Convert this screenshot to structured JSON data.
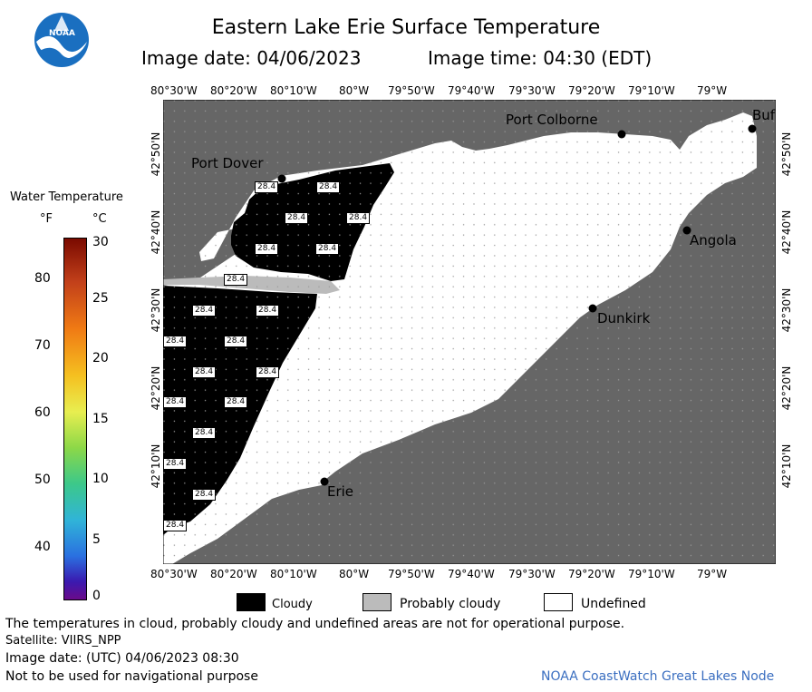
{
  "header": {
    "title": "Eastern Lake Erie Surface Temperature",
    "image_date": "Image date: 04/06/2023",
    "image_time": "Image time: 04:30 (EDT)",
    "logo_text": "NOAA"
  },
  "map": {
    "lon_labels": [
      "80°30'W",
      "80°20'W",
      "80°10'W",
      "80°W",
      "79°50'W",
      "79°40'W",
      "79°30'W",
      "79°20'W",
      "79°10'W",
      "79°W"
    ],
    "lat_labels": [
      "42°50'N",
      "42°40'N",
      "42°30'N",
      "42°20'N",
      "42°10'N"
    ],
    "places": {
      "port_colborne": "Port Colborne",
      "port_dover": "Port Dover",
      "angola": "Angola",
      "dunkirk": "Dunkirk",
      "erie": "Erie",
      "buffalo": "Buf"
    },
    "temp_label": "28.4",
    "colors": {
      "land": "#666666",
      "cloud": "#000000",
      "prob_cloud": "#bbbbbb",
      "undefined": "#ffffff"
    }
  },
  "colorbar": {
    "title": "Water Temperature",
    "unit_f": "°F",
    "unit_c": "°C",
    "f_ticks": [
      "80",
      "70",
      "60",
      "50",
      "40"
    ],
    "c_ticks": [
      "30",
      "25",
      "20",
      "15",
      "10",
      "5",
      "0"
    ]
  },
  "legend": {
    "cloudy": "Cloudy",
    "probably_cloudy": "Probably cloudy",
    "undefined": "Undefined"
  },
  "footer": {
    "note": "The temperatures in cloud, probably cloudy and undefined areas are not for operational purpose.",
    "satellite": "Satellite: VIIRS_NPP",
    "utc_date": "Image date: (UTC) 04/06/2023  08:30",
    "nav_warning": "Not to be used for navigational purpose",
    "credit": "NOAA CoastWatch Great Lakes Node"
  }
}
